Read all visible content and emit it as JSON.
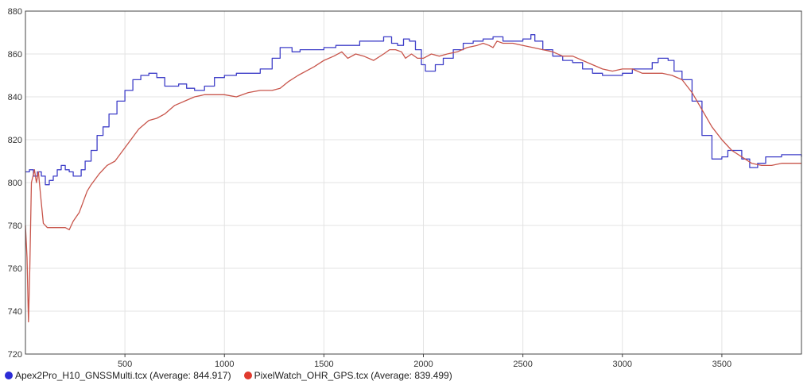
{
  "chart_data": {
    "type": "line",
    "xlim": [
      0,
      3900
    ],
    "ylim": [
      720,
      880
    ],
    "x_ticks": [
      "500",
      "1000",
      "1500",
      "2000",
      "2500",
      "3000",
      "3500"
    ],
    "y_ticks": [
      "720",
      "740",
      "760",
      "780",
      "800",
      "820",
      "840",
      "860",
      "880"
    ],
    "grid": true,
    "legend_position": "bottom-left",
    "series": [
      {
        "name": "Apex2Pro_H10_GNSSMulti.tcx",
        "average_label": "(Average: 844.917)",
        "color": "#3f3fc8",
        "x": [
          0,
          20,
          40,
          60,
          80,
          100,
          120,
          140,
          160,
          180,
          200,
          220,
          240,
          260,
          280,
          300,
          330,
          360,
          390,
          420,
          460,
          500,
          540,
          580,
          620,
          660,
          700,
          730,
          770,
          810,
          850,
          900,
          950,
          1000,
          1060,
          1120,
          1180,
          1240,
          1280,
          1310,
          1340,
          1380,
          1440,
          1500,
          1560,
          1620,
          1680,
          1740,
          1800,
          1840,
          1870,
          1900,
          1930,
          1960,
          1990,
          2010,
          2030,
          2060,
          2100,
          2150,
          2200,
          2250,
          2300,
          2350,
          2400,
          2450,
          2500,
          2540,
          2560,
          2600,
          2650,
          2700,
          2750,
          2800,
          2850,
          2900,
          2950,
          3000,
          3050,
          3100,
          3150,
          3180,
          3200,
          3230,
          3260,
          3300,
          3350,
          3400,
          3450,
          3480,
          3500,
          3530,
          3560,
          3600,
          3640,
          3680,
          3720,
          3760,
          3800,
          3840,
          3870,
          3900
        ],
        "y": [
          805,
          806,
          803,
          805,
          803,
          799,
          801,
          803,
          806,
          808,
          806,
          805,
          803,
          803,
          806,
          810,
          815,
          822,
          826,
          832,
          838,
          843,
          848,
          850,
          851,
          849,
          845,
          845,
          846,
          844,
          843,
          845,
          849,
          850,
          851,
          851,
          853,
          858,
          863,
          863,
          861,
          862,
          862,
          863,
          864,
          864,
          866,
          866,
          868,
          865,
          864,
          867,
          866,
          862,
          855,
          852,
          852,
          855,
          858,
          862,
          865,
          866,
          867,
          868,
          866,
          866,
          867,
          869,
          866,
          862,
          859,
          857,
          856,
          853,
          851,
          850,
          850,
          851,
          853,
          853,
          856,
          858,
          858,
          857,
          852,
          848,
          838,
          822,
          811,
          811,
          812,
          815,
          815,
          811,
          807,
          809,
          812,
          812,
          813,
          813,
          813,
          812
        ]
      },
      {
        "name": "PixelWatch_OHR_GPS.tcx",
        "average_label": "(Average: 839.499)",
        "color": "#c8554b",
        "x": [
          0,
          8,
          15,
          22,
          30,
          38,
          45,
          55,
          65,
          75,
          90,
          110,
          130,
          160,
          200,
          220,
          240,
          270,
          290,
          310,
          330,
          370,
          410,
          450,
          490,
          530,
          570,
          620,
          660,
          700,
          750,
          800,
          850,
          900,
          950,
          1000,
          1060,
          1120,
          1180,
          1240,
          1280,
          1320,
          1370,
          1410,
          1450,
          1500,
          1550,
          1590,
          1620,
          1660,
          1700,
          1750,
          1800,
          1830,
          1860,
          1890,
          1910,
          1940,
          1970,
          2000,
          2040,
          2080,
          2120,
          2170,
          2220,
          2270,
          2300,
          2330,
          2350,
          2370,
          2400,
          2450,
          2500,
          2550,
          2600,
          2650,
          2700,
          2750,
          2800,
          2850,
          2900,
          2950,
          3000,
          3050,
          3100,
          3150,
          3200,
          3250,
          3300,
          3350,
          3400,
          3450,
          3500,
          3550,
          3600,
          3650,
          3700,
          3750,
          3800,
          3850,
          3900
        ],
        "y": [
          780,
          765,
          735,
          760,
          800,
          803,
          806,
          800,
          805,
          795,
          781,
          779,
          779,
          779,
          779,
          778,
          782,
          786,
          791,
          796,
          799,
          804,
          808,
          810,
          815,
          820,
          825,
          829,
          830,
          832,
          836,
          838,
          840,
          841,
          841,
          841,
          840,
          842,
          843,
          843,
          844,
          847,
          850,
          852,
          854,
          857,
          859,
          861,
          858,
          860,
          859,
          857,
          860,
          862,
          862,
          861,
          858,
          860,
          858,
          858,
          860,
          859,
          860,
          861,
          863,
          864,
          865,
          864,
          863,
          866,
          865,
          865,
          864,
          863,
          862,
          861,
          859,
          859,
          857,
          855,
          853,
          852,
          853,
          853,
          851,
          851,
          851,
          850,
          848,
          842,
          834,
          826,
          820,
          815,
          812,
          809,
          808,
          808,
          809,
          809,
          809
        ]
      }
    ]
  }
}
